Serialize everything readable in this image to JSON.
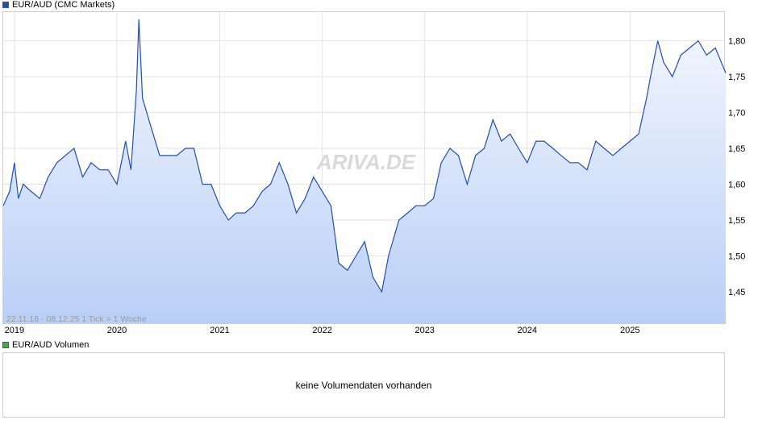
{
  "legend": {
    "price_label": "EUR/AUD (CMC Markets)",
    "price_color": "#1f4fb5",
    "volume_label": "EUR/AUD Volumen",
    "volume_color": "#3cb043"
  },
  "info_text": "22.11.18 - 08.12.25    1 Tick = 1 Woche",
  "watermark": "ARIVA.DE",
  "volume_panel": {
    "message": "keine Volumendaten vorhanden"
  },
  "chart_data": {
    "type": "area",
    "title": "",
    "xlabel": "",
    "ylabel": "",
    "x_ticks": [
      "2019",
      "2020",
      "2021",
      "2022",
      "2023",
      "2024",
      "2025"
    ],
    "y_ticks": [
      "1,45",
      "1,50",
      "1,55",
      "1,60",
      "1,65",
      "1,70",
      "1,75",
      "1,80"
    ],
    "xlim": [
      "2018-11-22",
      "2025-12-08"
    ],
    "ylim": [
      1.405,
      1.84
    ],
    "grid": true,
    "line_color": "#1f4fb5",
    "series": [
      {
        "name": "EUR/AUD (CMC Markets)",
        "x": [
          "2018-11-22",
          "2018-12-15",
          "2019-01-01",
          "2019-01-15",
          "2019-02-01",
          "2019-03-01",
          "2019-04-01",
          "2019-05-01",
          "2019-06-01",
          "2019-07-01",
          "2019-08-01",
          "2019-09-01",
          "2019-10-01",
          "2019-11-01",
          "2019-12-01",
          "2020-01-01",
          "2020-02-01",
          "2020-02-20",
          "2020-03-10",
          "2020-03-19",
          "2020-04-01",
          "2020-05-01",
          "2020-06-01",
          "2020-07-01",
          "2020-08-01",
          "2020-09-01",
          "2020-10-01",
          "2020-11-01",
          "2020-12-01",
          "2021-01-01",
          "2021-02-01",
          "2021-03-01",
          "2021-04-01",
          "2021-05-01",
          "2021-06-01",
          "2021-07-01",
          "2021-08-01",
          "2021-09-01",
          "2021-10-01",
          "2021-11-01",
          "2021-12-01",
          "2022-01-01",
          "2022-02-01",
          "2022-03-01",
          "2022-04-01",
          "2022-05-01",
          "2022-06-01",
          "2022-07-01",
          "2022-08-01",
          "2022-08-25",
          "2022-10-01",
          "2022-11-01",
          "2022-12-01",
          "2023-01-01",
          "2023-02-01",
          "2023-03-01",
          "2023-04-01",
          "2023-05-01",
          "2023-06-01",
          "2023-07-01",
          "2023-08-01",
          "2023-09-01",
          "2023-10-01",
          "2023-11-01",
          "2023-12-01",
          "2024-01-01",
          "2024-02-01",
          "2024-03-01",
          "2024-04-01",
          "2024-05-01",
          "2024-06-01",
          "2024-07-01",
          "2024-08-01",
          "2024-09-01",
          "2024-10-01",
          "2024-11-01",
          "2024-12-01",
          "2025-01-01",
          "2025-02-01",
          "2025-03-01",
          "2025-03-15",
          "2025-04-10",
          "2025-05-01",
          "2025-06-01",
          "2025-07-01",
          "2025-08-01",
          "2025-09-01",
          "2025-10-01",
          "2025-11-01",
          "2025-12-08"
        ],
        "values": [
          1.57,
          1.59,
          1.63,
          1.58,
          1.6,
          1.59,
          1.58,
          1.61,
          1.63,
          1.64,
          1.65,
          1.61,
          1.63,
          1.62,
          1.62,
          1.6,
          1.66,
          1.62,
          1.73,
          1.83,
          1.72,
          1.68,
          1.64,
          1.64,
          1.64,
          1.65,
          1.65,
          1.6,
          1.6,
          1.57,
          1.55,
          1.56,
          1.56,
          1.57,
          1.59,
          1.6,
          1.63,
          1.6,
          1.56,
          1.58,
          1.61,
          1.59,
          1.57,
          1.49,
          1.48,
          1.5,
          1.52,
          1.47,
          1.45,
          1.5,
          1.55,
          1.56,
          1.57,
          1.57,
          1.58,
          1.63,
          1.65,
          1.64,
          1.6,
          1.64,
          1.65,
          1.69,
          1.66,
          1.67,
          1.65,
          1.63,
          1.66,
          1.66,
          1.65,
          1.64,
          1.63,
          1.63,
          1.62,
          1.66,
          1.65,
          1.64,
          1.65,
          1.66,
          1.67,
          1.72,
          1.75,
          1.8,
          1.77,
          1.75,
          1.78,
          1.79,
          1.8,
          1.78,
          1.79,
          1.755
        ]
      }
    ]
  }
}
